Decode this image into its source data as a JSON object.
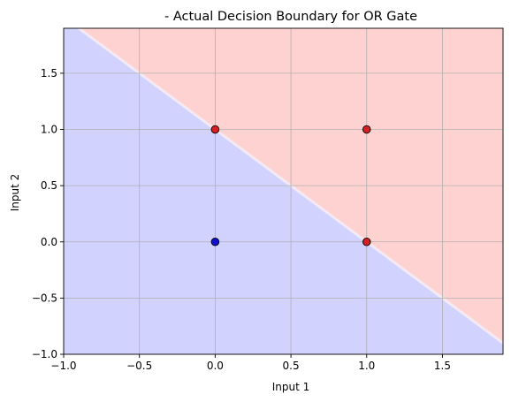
{
  "chart_data": {
    "type": "scatter",
    "title": "- Actual Decision Boundary for OR Gate",
    "xlabel": "Input 1",
    "ylabel": "Input 2",
    "xlim": [
      -1.0,
      1.9
    ],
    "ylim": [
      -1.0,
      1.9
    ],
    "xticks": [
      -1.0,
      -0.5,
      0.0,
      0.5,
      1.0,
      1.5
    ],
    "yticks": [
      -1.0,
      -0.5,
      0.0,
      0.5,
      1.0,
      1.5
    ],
    "xtick_labels": [
      "−1.0",
      "−0.5",
      "0.0",
      "0.5",
      "1.0",
      "1.5"
    ],
    "ytick_labels": [
      "−1.0",
      "−0.5",
      "0.0",
      "0.5",
      "1.0",
      "1.5"
    ],
    "grid": true,
    "decision_boundary": {
      "equation": "x + y = 1",
      "below_color": "#d2d2ff",
      "above_color": "#ffd2d2"
    },
    "points": [
      {
        "x": 0,
        "y": 0,
        "class": 0,
        "color": "#1010c8"
      },
      {
        "x": 0,
        "y": 1,
        "class": 1,
        "color": "#d42020"
      },
      {
        "x": 1,
        "y": 0,
        "class": 1,
        "color": "#d42020"
      },
      {
        "x": 1,
        "y": 1,
        "class": 1,
        "color": "#d42020"
      }
    ]
  }
}
